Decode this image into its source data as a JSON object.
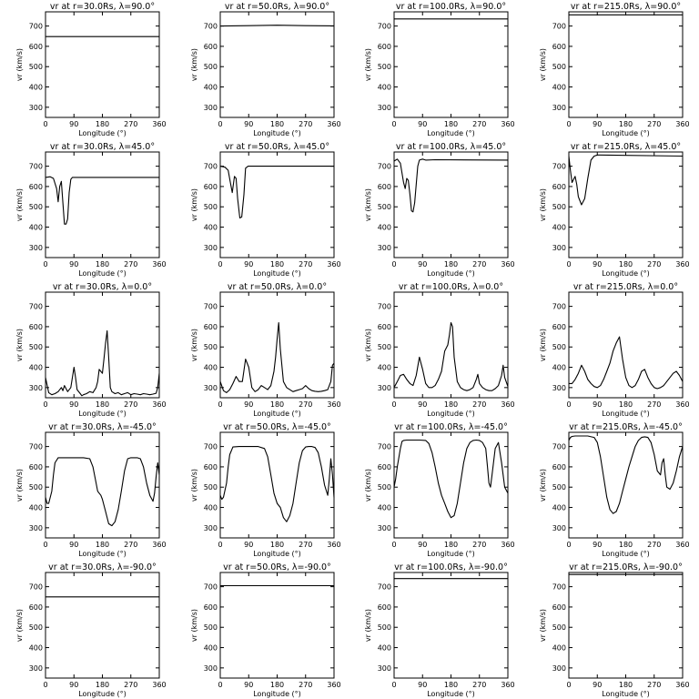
{
  "chart_data": {
    "type": "line",
    "layout": {
      "rows": 5,
      "cols": 4
    },
    "xlabel": "Longitude (°)",
    "ylabel": "vr (km/s)",
    "xlim": [
      0,
      360
    ],
    "ylim": [
      250,
      770
    ],
    "xticks": [
      0,
      90,
      180,
      270,
      360
    ],
    "yticks": [
      300,
      400,
      500,
      600,
      700
    ],
    "panels": [
      {
        "title": "vr at r=30.0Rs, λ=90.0°",
        "x": [
          0,
          360
        ],
        "y": [
          648,
          648
        ]
      },
      {
        "title": "vr at r=50.0Rs, λ=90.0°",
        "x": [
          0,
          90,
          180,
          270,
          360
        ],
        "y": [
          700,
          702,
          704,
          702,
          701
        ]
      },
      {
        "title": "vr at r=100.0Rs, λ=90.0°",
        "x": [
          0,
          360
        ],
        "y": [
          735,
          735
        ]
      },
      {
        "title": "vr at r=215.0Rs, λ=90.0°",
        "x": [
          0,
          360
        ],
        "y": [
          755,
          755
        ]
      },
      {
        "title": "vr at r=30.0Rs, λ=45.0°",
        "x": [
          0,
          15,
          25,
          35,
          40,
          45,
          50,
          55,
          60,
          65,
          70,
          75,
          80,
          85,
          90,
          100,
          360
        ],
        "y": [
          645,
          648,
          640,
          590,
          525,
          600,
          625,
          520,
          415,
          415,
          440,
          570,
          635,
          645,
          645,
          645,
          645
        ]
      },
      {
        "title": "vr at r=50.0Rs, λ=45.0°",
        "x": [
          0,
          15,
          25,
          32,
          38,
          45,
          50,
          55,
          62,
          68,
          75,
          80,
          88,
          100,
          360
        ],
        "y": [
          700,
          695,
          680,
          620,
          570,
          650,
          640,
          540,
          445,
          450,
          560,
          690,
          700,
          700,
          700
        ]
      },
      {
        "title": "vr at r=100.0Rs, λ=45.0°",
        "x": [
          0,
          10,
          20,
          30,
          35,
          40,
          45,
          50,
          55,
          60,
          65,
          70,
          75,
          80,
          90,
          100,
          130,
          360
        ],
        "y": [
          725,
          735,
          715,
          620,
          590,
          640,
          630,
          560,
          480,
          475,
          520,
          610,
          700,
          730,
          735,
          730,
          732,
          730
        ]
      },
      {
        "title": "vr at r=215.0Rs, λ=45.0°",
        "x": [
          0,
          5,
          10,
          20,
          25,
          30,
          40,
          50,
          60,
          70,
          80,
          90,
          100,
          360
        ],
        "y": [
          750,
          680,
          620,
          650,
          610,
          550,
          510,
          540,
          640,
          730,
          750,
          755,
          755,
          750
        ]
      },
      {
        "title": "vr at r=30.0Rs, λ=0.0°",
        "x": [
          0,
          10,
          20,
          30,
          40,
          50,
          55,
          60,
          70,
          80,
          90,
          95,
          100,
          110,
          115,
          120,
          130,
          140,
          150,
          160,
          165,
          170,
          180,
          185,
          190,
          195,
          200,
          205,
          210,
          220,
          230,
          240,
          250,
          260,
          270,
          280,
          290,
          300,
          310,
          320,
          330,
          340,
          350,
          355,
          360
        ],
        "y": [
          350,
          275,
          265,
          270,
          280,
          300,
          285,
          310,
          280,
          300,
          400,
          350,
          290,
          270,
          260,
          265,
          270,
          280,
          275,
          300,
          330,
          390,
          370,
          440,
          520,
          580,
          450,
          300,
          280,
          270,
          275,
          265,
          270,
          275,
          265,
          270,
          268,
          265,
          270,
          268,
          265,
          268,
          272,
          300,
          370
        ]
      },
      {
        "title": "vr at r=50.0Rs, λ=0.0°",
        "x": [
          0,
          10,
          20,
          30,
          40,
          50,
          60,
          70,
          80,
          90,
          100,
          110,
          120,
          130,
          140,
          150,
          160,
          170,
          175,
          180,
          185,
          190,
          200,
          210,
          220,
          230,
          240,
          250,
          260,
          270,
          280,
          290,
          300,
          310,
          320,
          330,
          340,
          350,
          355,
          360
        ],
        "y": [
          330,
          285,
          275,
          290,
          320,
          355,
          330,
          330,
          440,
          400,
          300,
          280,
          290,
          310,
          300,
          290,
          310,
          380,
          450,
          540,
          620,
          490,
          330,
          300,
          290,
          280,
          285,
          290,
          295,
          310,
          295,
          285,
          282,
          280,
          282,
          285,
          290,
          330,
          410,
          420
        ]
      },
      {
        "title": "vr at r=100.0Rs, λ=0.0°",
        "x": [
          0,
          10,
          20,
          30,
          40,
          50,
          60,
          70,
          80,
          90,
          100,
          110,
          120,
          130,
          140,
          150,
          160,
          170,
          175,
          180,
          185,
          190,
          200,
          210,
          220,
          230,
          240,
          250,
          260,
          265,
          270,
          280,
          290,
          300,
          310,
          320,
          330,
          340,
          345,
          350,
          360
        ],
        "y": [
          300,
          330,
          360,
          365,
          340,
          320,
          310,
          360,
          450,
          390,
          320,
          300,
          300,
          310,
          340,
          380,
          480,
          510,
          560,
          620,
          600,
          450,
          330,
          300,
          290,
          285,
          290,
          300,
          340,
          365,
          320,
          300,
          290,
          285,
          285,
          295,
          310,
          360,
          410,
          350,
          305
        ]
      },
      {
        "title": "vr at r=215.0Rs, λ=0.0°",
        "x": [
          0,
          10,
          20,
          30,
          40,
          50,
          60,
          70,
          80,
          90,
          100,
          110,
          120,
          130,
          140,
          150,
          160,
          170,
          180,
          190,
          200,
          210,
          220,
          230,
          240,
          250,
          260,
          270,
          280,
          290,
          300,
          310,
          320,
          330,
          340,
          350,
          360
        ],
        "y": [
          320,
          320,
          340,
          370,
          410,
          380,
          340,
          320,
          305,
          300,
          310,
          340,
          380,
          420,
          480,
          520,
          550,
          440,
          350,
          310,
          300,
          310,
          340,
          380,
          390,
          350,
          320,
          300,
          295,
          300,
          310,
          330,
          350,
          370,
          380,
          360,
          330
        ]
      },
      {
        "title": "vr at r=30.0Rs, λ=-45.0°",
        "x": [
          0,
          5,
          10,
          20,
          25,
          30,
          40,
          60,
          80,
          100,
          120,
          140,
          150,
          160,
          165,
          170,
          175,
          180,
          190,
          200,
          210,
          220,
          230,
          240,
          250,
          260,
          270,
          280,
          290,
          300,
          310,
          320,
          330,
          340,
          345,
          350,
          355,
          360
        ],
        "y": [
          450,
          420,
          420,
          480,
          560,
          620,
          645,
          645,
          645,
          645,
          645,
          640,
          600,
          520,
          480,
          470,
          460,
          440,
          380,
          320,
          310,
          330,
          390,
          480,
          580,
          640,
          645,
          645,
          645,
          640,
          600,
          520,
          460,
          430,
          470,
          550,
          620,
          560
        ]
      },
      {
        "title": "vr at r=50.0Rs, λ=-45.0°",
        "x": [
          0,
          5,
          10,
          20,
          25,
          30,
          40,
          60,
          80,
          100,
          120,
          140,
          150,
          160,
          170,
          180,
          190,
          200,
          210,
          220,
          230,
          240,
          250,
          260,
          270,
          280,
          290,
          300,
          310,
          320,
          330,
          340,
          345,
          350,
          355,
          360
        ],
        "y": [
          460,
          440,
          450,
          520,
          600,
          660,
          698,
          700,
          700,
          700,
          700,
          690,
          650,
          560,
          470,
          420,
          400,
          350,
          330,
          360,
          420,
          520,
          620,
          680,
          698,
          700,
          700,
          695,
          670,
          600,
          510,
          460,
          540,
          640,
          560,
          450
        ]
      },
      {
        "title": "vr at r=100.0Rs, λ=-45.0°",
        "x": [
          0,
          5,
          10,
          20,
          25,
          30,
          40,
          60,
          80,
          100,
          110,
          120,
          130,
          140,
          150,
          160,
          170,
          180,
          190,
          200,
          210,
          220,
          230,
          240,
          250,
          260,
          270,
          280,
          290,
          295,
          300,
          305,
          310,
          320,
          330,
          340,
          350,
          360
        ],
        "y": [
          500,
          540,
          600,
          690,
          725,
          730,
          732,
          732,
          732,
          730,
          715,
          670,
          600,
          520,
          460,
          420,
          380,
          350,
          360,
          420,
          520,
          620,
          690,
          720,
          730,
          732,
          730,
          720,
          690,
          610,
          520,
          500,
          560,
          690,
          720,
          620,
          500,
          470
        ]
      },
      {
        "title": "vr at r=215.0Rs, λ=-45.0°",
        "x": [
          0,
          5,
          10,
          20,
          40,
          60,
          80,
          90,
          100,
          110,
          120,
          130,
          140,
          150,
          160,
          170,
          180,
          190,
          200,
          210,
          220,
          230,
          240,
          250,
          260,
          270,
          280,
          290,
          295,
          300,
          305,
          310,
          320,
          330,
          340,
          350,
          360
        ],
        "y": [
          730,
          745,
          750,
          752,
          752,
          752,
          745,
          720,
          650,
          550,
          450,
          390,
          370,
          380,
          420,
          480,
          540,
          600,
          650,
          700,
          730,
          745,
          748,
          745,
          720,
          660,
          580,
          560,
          620,
          640,
          560,
          500,
          490,
          520,
          580,
          650,
          700
        ]
      },
      {
        "title": "vr at r=30.0Rs, λ=-90.0°",
        "x": [
          0,
          360
        ],
        "y": [
          650,
          650
        ]
      },
      {
        "title": "vr at r=50.0Rs, λ=-90.0°",
        "x": [
          0,
          360
        ],
        "y": [
          705,
          705
        ]
      },
      {
        "title": "vr at r=100.0Rs, λ=-90.0°",
        "x": [
          0,
          360
        ],
        "y": [
          740,
          740
        ]
      },
      {
        "title": "vr at r=215.0Rs, λ=-90.0°",
        "x": [
          0,
          360
        ],
        "y": [
          760,
          760
        ]
      }
    ]
  }
}
